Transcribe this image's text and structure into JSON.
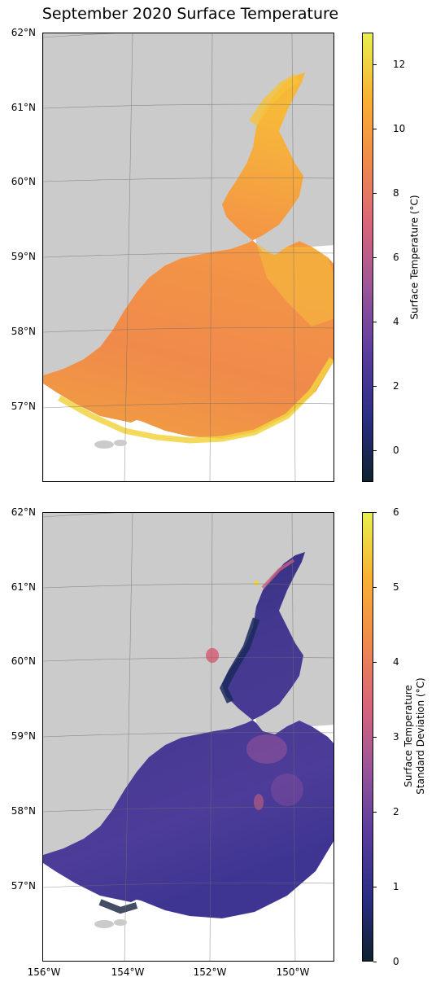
{
  "title": "September 2020 Surface Temperature",
  "lat_ticks": [
    "62°N",
    "61°N",
    "60°N",
    "59°N",
    "58°N",
    "57°N"
  ],
  "lon_ticks": [
    "156°W",
    "154°W",
    "152°W",
    "150°W"
  ],
  "panels": [
    {
      "id": "mean",
      "colorbar_label": "Surface Temperature (°C)",
      "colorbar_label_line2": "",
      "colorbar_ticks": [
        "0",
        "2",
        "4",
        "6",
        "8",
        "10",
        "12"
      ],
      "colorbar_range": [
        -1,
        13
      ],
      "colormap": [
        "#0d2230",
        "#2a2f84",
        "#5a3c9e",
        "#9a559a",
        "#d8657a",
        "#f08a4b",
        "#f8b133",
        "#e8f04e"
      ]
    },
    {
      "id": "std",
      "colorbar_label": "Surface Temperature",
      "colorbar_label_line2": "Standard Deviation (°C)",
      "colorbar_ticks": [
        "0",
        "1",
        "2",
        "3",
        "4",
        "5",
        "6"
      ],
      "colorbar_range": [
        0,
        6
      ],
      "colormap": [
        "#0d2230",
        "#2a2f84",
        "#5a3c9e",
        "#9a559a",
        "#d8657a",
        "#f08a4b",
        "#f8b133",
        "#e8f04e"
      ]
    }
  ]
}
